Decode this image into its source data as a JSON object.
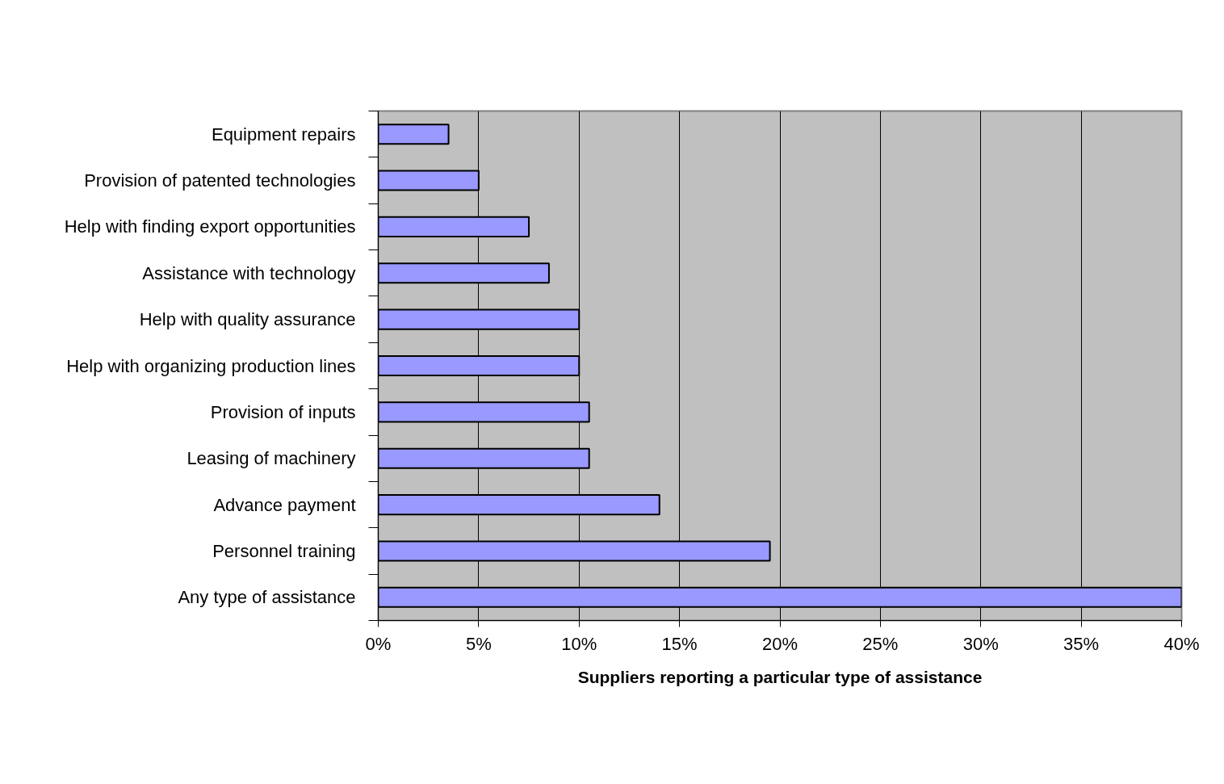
{
  "chart_data": {
    "type": "bar",
    "orientation": "horizontal",
    "categories": [
      "Equipment repairs",
      "Provision of patented technologies",
      "Help with finding export opportunities",
      "Assistance with technology",
      "Help with quality assurance",
      "Help with organizing production lines",
      "Provision of inputs",
      "Leasing of machinery",
      "Advance payment",
      "Personnel training",
      "Any type of assistance"
    ],
    "values": [
      3.5,
      5,
      7.5,
      8.5,
      10,
      10,
      10.5,
      10.5,
      14,
      19.5,
      40
    ],
    "color": "#9999ff",
    "xlabel": "Suppliers reporting a particular type of assistance",
    "xlim": [
      0,
      40
    ],
    "xticks": [
      {
        "value": 0,
        "label": "0%"
      },
      {
        "value": 5,
        "label": "5%"
      },
      {
        "value": 10,
        "label": "10%"
      },
      {
        "value": 15,
        "label": "15%"
      },
      {
        "value": 20,
        "label": "20%"
      },
      {
        "value": 25,
        "label": "25%"
      },
      {
        "value": 30,
        "label": "30%"
      },
      {
        "value": 35,
        "label": "35%"
      },
      {
        "value": 40,
        "label": "40%"
      }
    ],
    "grid": "x"
  }
}
